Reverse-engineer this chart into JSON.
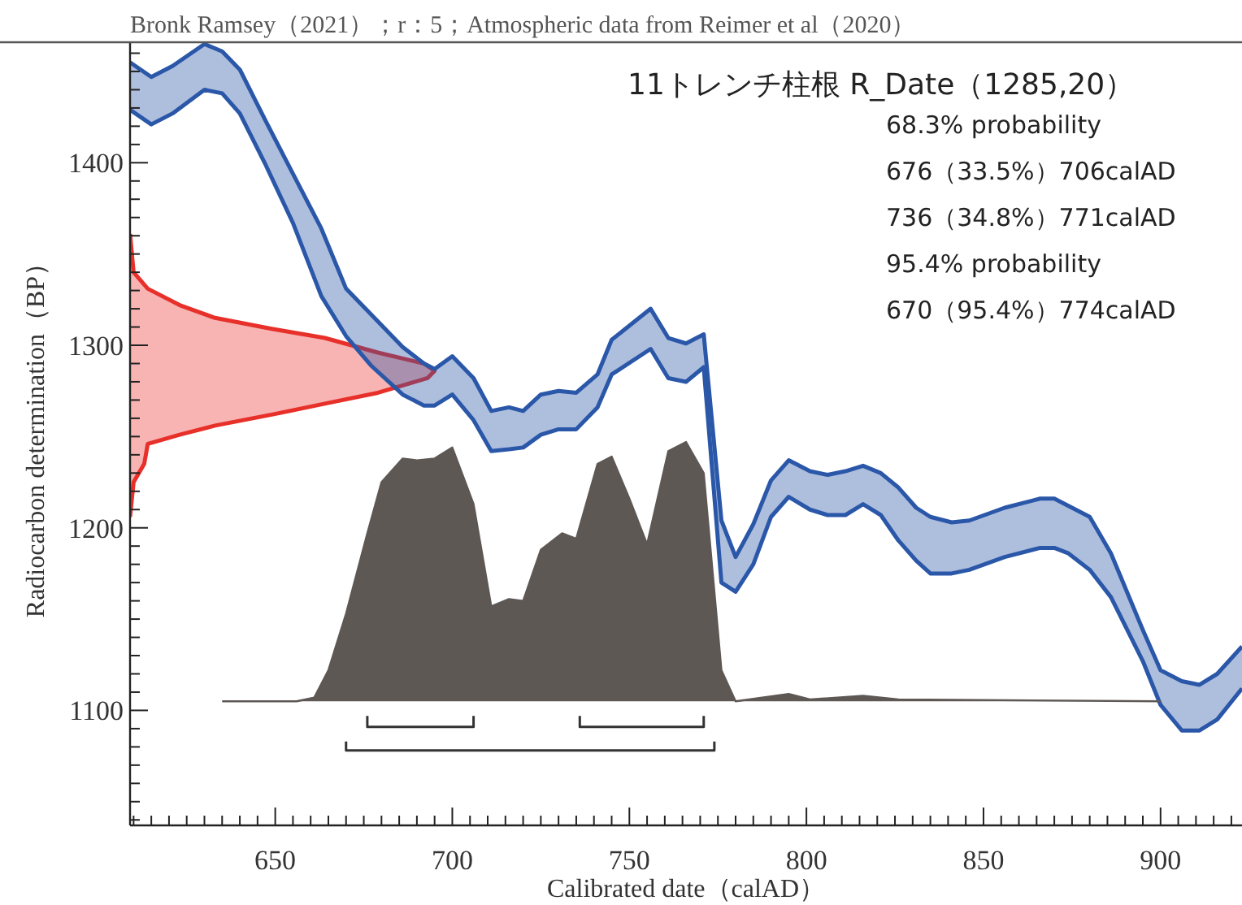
{
  "chart_data": {
    "type": "area",
    "title": "11トレンチ柱根 R_Date（1285,20）",
    "xlabel": "Calibrated date（calAD）",
    "ylabel": "Radiocarbon determination（BP）",
    "annotations": [
      "Bronk Ramsey（2021）；r：5；Atmospheric data from Reimer et al（2020）",
      "68.3% probability",
      "676（33.5%）706calAD",
      "736（34.8%）771calAD",
      "95.4% probability",
      "670（95.4%）774calAD"
    ],
    "xlim": [
      609,
      923
    ],
    "ylim": [
      1037,
      1466
    ],
    "xticks": [
      {
        "value": 610,
        "label": null
      },
      {
        "value": 615,
        "label": null
      },
      {
        "value": 620,
        "label": null
      },
      {
        "value": 625,
        "label": null
      },
      {
        "value": 630,
        "label": null
      },
      {
        "value": 635,
        "label": null
      },
      {
        "value": 640,
        "label": null
      },
      {
        "value": 645,
        "label": null
      },
      650,
      {
        "value": 655,
        "label": null
      },
      {
        "value": 660,
        "label": null
      },
      {
        "value": 665,
        "label": null
      },
      {
        "value": 670,
        "label": null
      },
      {
        "value": 675,
        "label": null
      },
      {
        "value": 680,
        "label": null
      },
      {
        "value": 685,
        "label": null
      },
      {
        "value": 690,
        "label": null
      },
      {
        "value": 695,
        "label": null
      },
      700,
      {
        "value": 705,
        "label": null
      },
      {
        "value": 710,
        "label": null
      },
      {
        "value": 715,
        "label": null
      },
      {
        "value": 720,
        "label": null
      },
      {
        "value": 725,
        "label": null
      },
      {
        "value": 730,
        "label": null
      },
      {
        "value": 735,
        "label": null
      },
      {
        "value": 740,
        "label": null
      },
      {
        "value": 745,
        "label": null
      },
      750,
      {
        "value": 755,
        "label": null
      },
      {
        "value": 760,
        "label": null
      },
      {
        "value": 765,
        "label": null
      },
      {
        "value": 770,
        "label": null
      },
      {
        "value": 775,
        "label": null
      },
      {
        "value": 780,
        "label": null
      },
      {
        "value": 785,
        "label": null
      },
      {
        "value": 790,
        "label": null
      },
      {
        "value": 795,
        "label": null
      },
      800,
      {
        "value": 805,
        "label": null
      },
      {
        "value": 810,
        "label": null
      },
      {
        "value": 815,
        "label": null
      },
      {
        "value": 820,
        "label": null
      },
      {
        "value": 825,
        "label": null
      },
      {
        "value": 830,
        "label": null
      },
      {
        "value": 835,
        "label": null
      },
      {
        "value": 840,
        "label": null
      },
      {
        "value": 845,
        "label": null
      },
      850,
      {
        "value": 855,
        "label": null
      },
      {
        "value": 860,
        "label": null
      },
      {
        "value": 865,
        "label": null
      },
      {
        "value": 870,
        "label": null
      },
      {
        "value": 875,
        "label": null
      },
      {
        "value": 880,
        "label": null
      },
      {
        "value": 885,
        "label": null
      },
      {
        "value": 890,
        "label": null
      },
      {
        "value": 895,
        "label": null
      },
      900,
      {
        "value": 905,
        "label": null
      },
      {
        "value": 910,
        "label": null
      },
      {
        "value": 915,
        "label": null
      },
      {
        "value": 920,
        "label": null
      }
    ],
    "yticks": [
      {
        "value": 1040,
        "label": null
      },
      {
        "value": 1050,
        "label": null
      },
      {
        "value": 1060,
        "label": null
      },
      {
        "value": 1070,
        "label": null
      },
      {
        "value": 1080,
        "label": null
      },
      {
        "value": 1090,
        "label": null
      },
      1100,
      {
        "value": 1110,
        "label": null
      },
      {
        "value": 1120,
        "label": null
      },
      {
        "value": 1130,
        "label": null
      },
      {
        "value": 1140,
        "label": null
      },
      {
        "value": 1150,
        "label": null
      },
      {
        "value": 1160,
        "label": null
      },
      {
        "value": 1170,
        "label": null
      },
      {
        "value": 1180,
        "label": null
      },
      {
        "value": 1190,
        "label": null
      },
      1200,
      {
        "value": 1210,
        "label": null
      },
      {
        "value": 1220,
        "label": null
      },
      {
        "value": 1230,
        "label": null
      },
      {
        "value": 1240,
        "label": null
      },
      {
        "value": 1250,
        "label": null
      },
      {
        "value": 1260,
        "label": null
      },
      {
        "value": 1270,
        "label": null
      },
      {
        "value": 1280,
        "label": null
      },
      {
        "value": 1290,
        "label": null
      },
      1300,
      {
        "value": 1310,
        "label": null
      },
      {
        "value": 1320,
        "label": null
      },
      {
        "value": 1330,
        "label": null
      },
      {
        "value": 1340,
        "label": null
      },
      {
        "value": 1350,
        "label": null
      },
      {
        "value": 1360,
        "label": null
      },
      {
        "value": 1370,
        "label": null
      },
      {
        "value": 1380,
        "label": null
      },
      {
        "value": 1390,
        "label": null
      },
      1400,
      {
        "value": 1410,
        "label": null
      },
      {
        "value": 1420,
        "label": null
      },
      {
        "value": 1430,
        "label": null
      },
      {
        "value": 1440,
        "label": null
      },
      {
        "value": 1450,
        "label": null
      },
      {
        "value": 1460,
        "label": null
      }
    ],
    "series": [
      {
        "color": "#e8302a",
        "x": [
          609,
          610,
          614,
          623,
          633,
          649,
          664,
          679,
          692,
          695,
          693,
          679,
          664,
          649,
          633,
          623,
          614,
          613,
          610,
          609
        ],
        "values": [
          1361,
          1340,
          1331,
          1322,
          1315,
          1309,
          1304,
          1296,
          1290,
          1286,
          1282,
          1274,
          1268,
          1262,
          1256,
          1251,
          1246,
          1235,
          1225,
          1206
        ]
      },
      {
        "type": "line",
        "color": "#2b57a9",
        "x": [
          609,
          615,
          621,
          630,
          635,
          640,
          647,
          655,
          663,
          670,
          677,
          686,
          692,
          695,
          700,
          706,
          711,
          716,
          720,
          725,
          730,
          735,
          741,
          745,
          756,
          761,
          766,
          771,
          776,
          780,
          785,
          790,
          795,
          801,
          806,
          811,
          816,
          821,
          826,
          831,
          835,
          841,
          846,
          856,
          866,
          870,
          874,
          880,
          886,
          895,
          900,
          906,
          911,
          916,
          923
        ],
        "values": [
          1455,
          1447,
          1453,
          1465,
          1461,
          1451,
          1424,
          1394,
          1364,
          1331,
          1317,
          1299,
          1290,
          1287,
          1294,
          1282,
          1264,
          1266,
          1264,
          1273,
          1275,
          1274,
          1284,
          1303,
          1320,
          1304,
          1301,
          1306,
          1204,
          1184,
          1202,
          1226,
          1237,
          1231,
          1229,
          1231,
          1234,
          1230,
          1222,
          1211,
          1206,
          1203,
          1204,
          1211,
          1216,
          1216,
          1212,
          1206,
          1186,
          1144,
          1122,
          1116,
          1114,
          1120,
          1135
        ],
        "upper": [
          1455,
          1447,
          1453,
          1465,
          1461,
          1451,
          1424,
          1394,
          1364,
          1331,
          1317,
          1299,
          1290,
          1287,
          1294,
          1282,
          1264,
          1266,
          1264,
          1273,
          1275,
          1274,
          1284,
          1303,
          1320,
          1304,
          1301,
          1306,
          1204,
          1184,
          1202,
          1226,
          1237,
          1231,
          1229,
          1231,
          1234,
          1230,
          1222,
          1211,
          1206,
          1203,
          1204,
          1211,
          1216,
          1216,
          1212,
          1206,
          1186,
          1144,
          1122,
          1116,
          1114,
          1120,
          1135
        ],
        "lower": [
          1429,
          1421,
          1427,
          1440,
          1438,
          1427,
          1400,
          1367,
          1327,
          1305,
          1289,
          1273,
          1267,
          1267,
          1273,
          1259,
          1242,
          1243,
          1244,
          1251,
          1254,
          1254,
          1266,
          1284,
          1298,
          1282,
          1280,
          1288,
          1170,
          1165,
          1180,
          1206,
          1217,
          1210,
          1207,
          1207,
          1213,
          1207,
          1193,
          1182,
          1175,
          1175,
          1177,
          1184,
          1189,
          1189,
          1186,
          1177,
          1162,
          1127,
          1103,
          1089,
          1089,
          1095,
          1112
        ]
      },
      {
        "type": "line",
        "color": "#2b57a9",
        "x": [
          609,
          615,
          621,
          630,
          635,
          640,
          647,
          655,
          663,
          670,
          677,
          686,
          692,
          695,
          700,
          706,
          711,
          716,
          720,
          725,
          730,
          735,
          741,
          745,
          756,
          761,
          766,
          771,
          776,
          780,
          785,
          790,
          795,
          801,
          806,
          811,
          816,
          821,
          826,
          831,
          835,
          841,
          846,
          856,
          866,
          870,
          874,
          880,
          886,
          895,
          900,
          906,
          911,
          916,
          923
        ],
        "values": [
          1429,
          1421,
          1427,
          1440,
          1438,
          1427,
          1400,
          1367,
          1327,
          1305,
          1289,
          1273,
          1267,
          1267,
          1273,
          1259,
          1242,
          1243,
          1244,
          1251,
          1254,
          1254,
          1266,
          1284,
          1298,
          1282,
          1280,
          1288,
          1170,
          1165,
          1180,
          1206,
          1217,
          1210,
          1207,
          1207,
          1213,
          1207,
          1193,
          1182,
          1175,
          1175,
          1177,
          1184,
          1189,
          1189,
          1186,
          1177,
          1162,
          1127,
          1103,
          1089,
          1089,
          1095,
          1112
        ]
      },
      {
        "color": "#5e5855",
        "x": [
          635,
          656,
          661,
          665,
          670,
          676,
          680,
          686,
          690,
          695,
          700,
          706,
          711,
          716,
          720,
          725,
          731,
          735,
          741,
          745,
          750,
          755,
          761,
          766,
          771,
          776,
          780,
          795,
          801,
          816,
          826,
          900
        ],
        "values": [
          1105,
          1105,
          1107,
          1122,
          1153,
          1197,
          1225,
          1238,
          1237,
          1238,
          1244,
          1213,
          1157,
          1161,
          1160,
          1188,
          1197,
          1194,
          1235,
          1239,
          1216,
          1191,
          1242,
          1247,
          1230,
          1122,
          1105,
          1109,
          1106,
          1108,
          1106,
          1105
        ]
      },
      {
        "type": "line",
        "color": "#333333",
        "x": [
          676,
          676,
          706,
          706
        ],
        "values": [
          1097,
          1091,
          1091,
          1097
        ]
      },
      {
        "type": "line",
        "color": "#333333",
        "x": [
          736,
          736,
          771,
          771
        ],
        "values": [
          1097,
          1091,
          1091,
          1097
        ]
      },
      {
        "type": "line",
        "color": "#333333",
        "x": [
          670,
          670,
          774,
          774
        ],
        "values": [
          1083,
          1078,
          1078,
          1083
        ]
      }
    ]
  }
}
